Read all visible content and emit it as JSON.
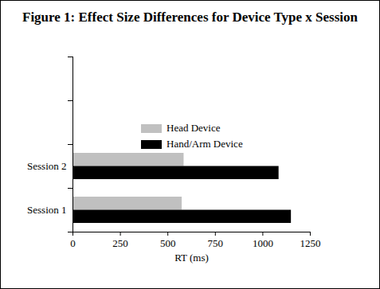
{
  "chart_data": {
    "type": "bar",
    "orientation": "horizontal",
    "title": "Figure 1:  Effect Size Differences for Device Type x Session",
    "x_label": "RT (ms)",
    "categories": [
      "Session 1",
      "Session 2",
      null,
      null
    ],
    "series": [
      {
        "name": "Head Device",
        "color": "#c0c0c0",
        "values": [
          575,
          585,
          null,
          null
        ]
      },
      {
        "name": "Hand/Arm Device",
        "color": "#000000",
        "values": [
          1150,
          1085,
          null,
          null
        ]
      }
    ],
    "xlim": [
      0,
      1250
    ],
    "xticks": [
      0,
      250,
      500,
      750,
      1000,
      1250
    ],
    "grid": false,
    "legend": "top-right"
  }
}
